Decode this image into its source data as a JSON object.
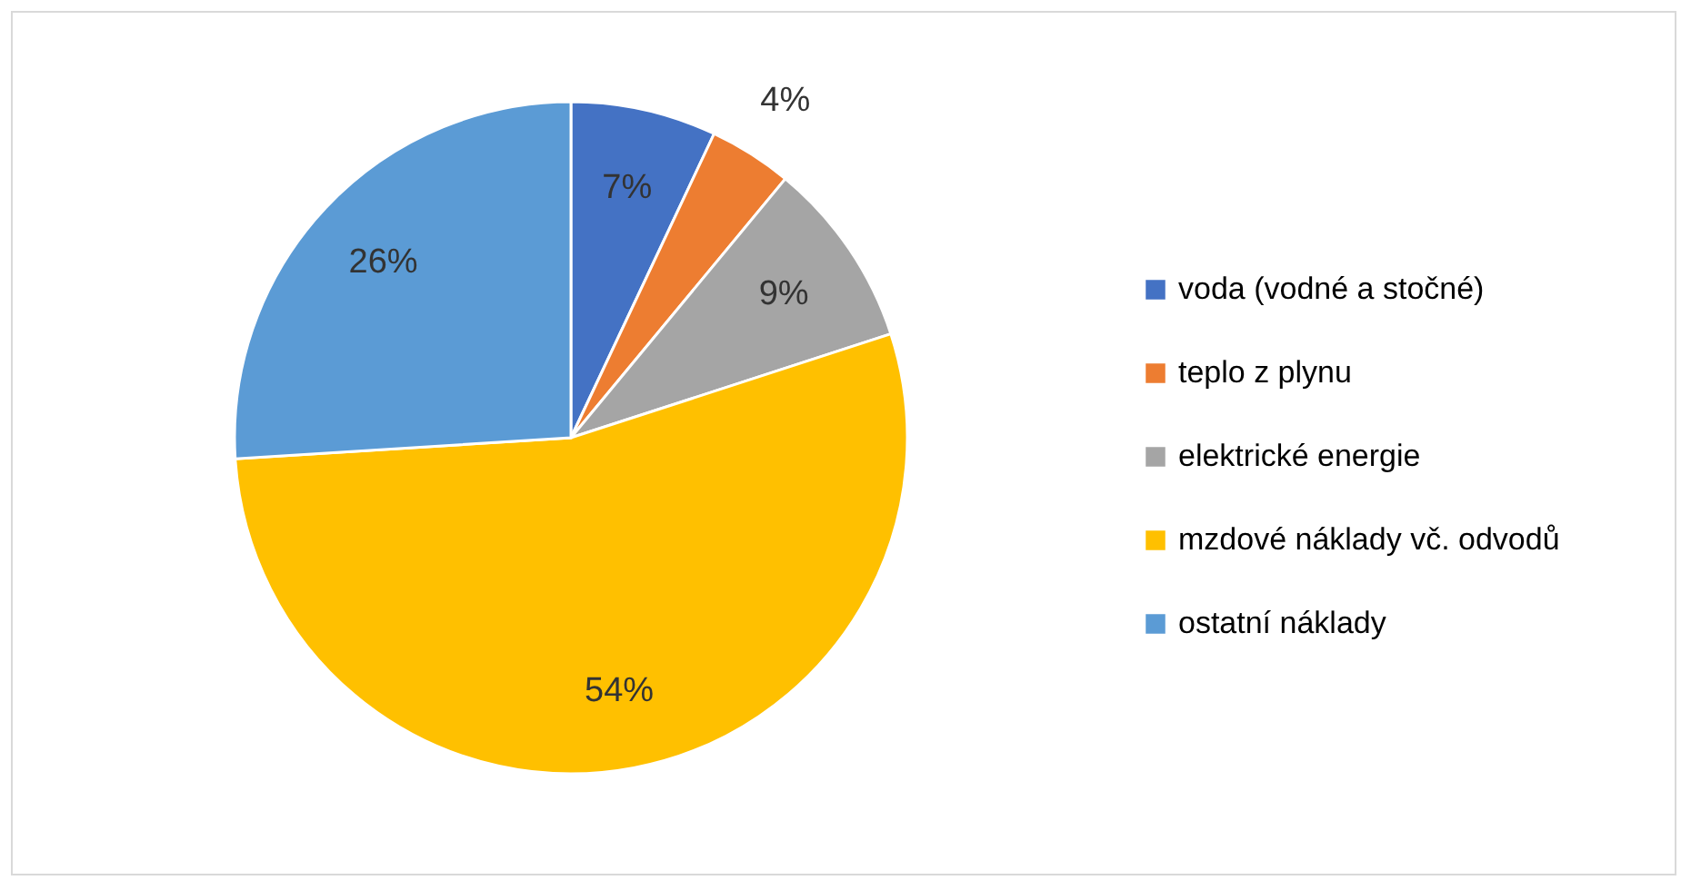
{
  "chart_data": {
    "type": "pie",
    "categories": [
      "voda (vodné a stočné)",
      "teplo z plynu",
      "elektrické energie",
      "mzdové náklady vč. odvodů",
      "ostatní náklady"
    ],
    "values": [
      7,
      4,
      9,
      54,
      26
    ],
    "colors": [
      "#4472c4",
      "#ed7d31",
      "#a5a5a5",
      "#ffc000",
      "#5b9bd5"
    ],
    "value_labels": [
      "7%",
      "4%",
      "9%",
      "54%",
      "26%"
    ],
    "legend": "right"
  }
}
